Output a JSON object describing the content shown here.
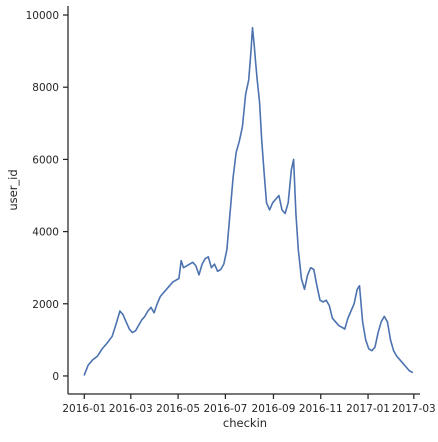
{
  "chart_data": {
    "type": "line",
    "title": "",
    "xlabel": "checkin",
    "ylabel": "user_id",
    "x_ticks": [
      "2016-01",
      "2016-03",
      "2016-05",
      "2016-07",
      "2016-09",
      "2016-11",
      "2017-01",
      "2017-03"
    ],
    "y_ticks": [
      0,
      2000,
      4000,
      6000,
      8000,
      10000
    ],
    "xlim": [
      "2015-12-11",
      "2017-03-09"
    ],
    "ylim": [
      -500,
      10250
    ],
    "grid": false,
    "legend": "none",
    "colors": {
      "line": "#4c72b0",
      "axis": "#262626"
    },
    "series": [
      {
        "x": [
          "2016-01-01",
          "2016-01-06",
          "2016-01-12",
          "2016-01-18",
          "2016-01-24",
          "2016-01-30",
          "2016-02-06",
          "2016-02-12",
          "2016-02-16",
          "2016-02-20",
          "2016-02-24",
          "2016-02-28",
          "2016-03-03",
          "2016-03-07",
          "2016-03-11",
          "2016-03-15",
          "2016-03-19",
          "2016-03-23",
          "2016-03-27",
          "2016-03-31",
          "2016-04-04",
          "2016-04-08",
          "2016-04-12",
          "2016-04-16",
          "2016-04-20",
          "2016-04-24",
          "2016-04-28",
          "2016-05-02",
          "2016-05-05",
          "2016-05-08",
          "2016-05-12",
          "2016-05-16",
          "2016-05-20",
          "2016-05-24",
          "2016-05-28",
          "2016-06-01",
          "2016-06-05",
          "2016-06-09",
          "2016-06-13",
          "2016-06-17",
          "2016-06-21",
          "2016-06-25",
          "2016-06-29",
          "2016-07-03",
          "2016-07-07",
          "2016-07-11",
          "2016-07-15",
          "2016-07-19",
          "2016-07-23",
          "2016-07-27",
          "2016-07-31",
          "2016-08-03",
          "2016-08-05",
          "2016-08-07",
          "2016-08-09",
          "2016-08-11",
          "2016-08-14",
          "2016-08-17",
          "2016-08-20",
          "2016-08-23",
          "2016-08-27",
          "2016-08-31",
          "2016-09-04",
          "2016-09-08",
          "2016-09-12",
          "2016-09-16",
          "2016-09-20",
          "2016-09-24",
          "2016-09-27",
          "2016-09-30",
          "2016-10-03",
          "2016-10-07",
          "2016-10-11",
          "2016-10-15",
          "2016-10-19",
          "2016-10-23",
          "2016-10-27",
          "2016-10-31",
          "2016-11-04",
          "2016-11-08",
          "2016-11-12",
          "2016-11-16",
          "2016-11-20",
          "2016-11-24",
          "2016-11-28",
          "2016-12-02",
          "2016-12-06",
          "2016-12-10",
          "2016-12-14",
          "2016-12-18",
          "2016-12-21",
          "2016-12-25",
          "2016-12-29",
          "2017-01-02",
          "2017-01-06",
          "2017-01-10",
          "2017-01-14",
          "2017-01-18",
          "2017-01-22",
          "2017-01-26",
          "2017-01-30",
          "2017-02-03",
          "2017-02-07",
          "2017-02-11",
          "2017-02-15",
          "2017-02-19",
          "2017-02-23",
          "2017-02-27"
        ],
        "y": [
          30,
          300,
          450,
          550,
          750,
          900,
          1100,
          1500,
          1800,
          1700,
          1500,
          1300,
          1200,
          1250,
          1400,
          1550,
          1650,
          1800,
          1900,
          1750,
          2000,
          2200,
          2300,
          2400,
          2500,
          2600,
          2650,
          2700,
          3200,
          3000,
          3050,
          3100,
          3150,
          3050,
          2800,
          3100,
          3250,
          3300,
          3000,
          3100,
          2900,
          2950,
          3100,
          3500,
          4500,
          5500,
          6200,
          6500,
          6900,
          7800,
          8200,
          9000,
          9650,
          9200,
          8700,
          8200,
          7600,
          6500,
          5600,
          4800,
          4600,
          4800,
          4900,
          5000,
          4600,
          4500,
          4800,
          5700,
          6000,
          4500,
          3500,
          2700,
          2400,
          2800,
          3000,
          2950,
          2500,
          2100,
          2050,
          2100,
          1950,
          1600,
          1500,
          1400,
          1350,
          1300,
          1600,
          1800,
          2000,
          2400,
          2500,
          1500,
          1000,
          750,
          700,
          800,
          1200,
          1500,
          1650,
          1500,
          1000,
          700,
          550,
          450,
          350,
          250,
          150,
          100
        ]
      }
    ]
  }
}
